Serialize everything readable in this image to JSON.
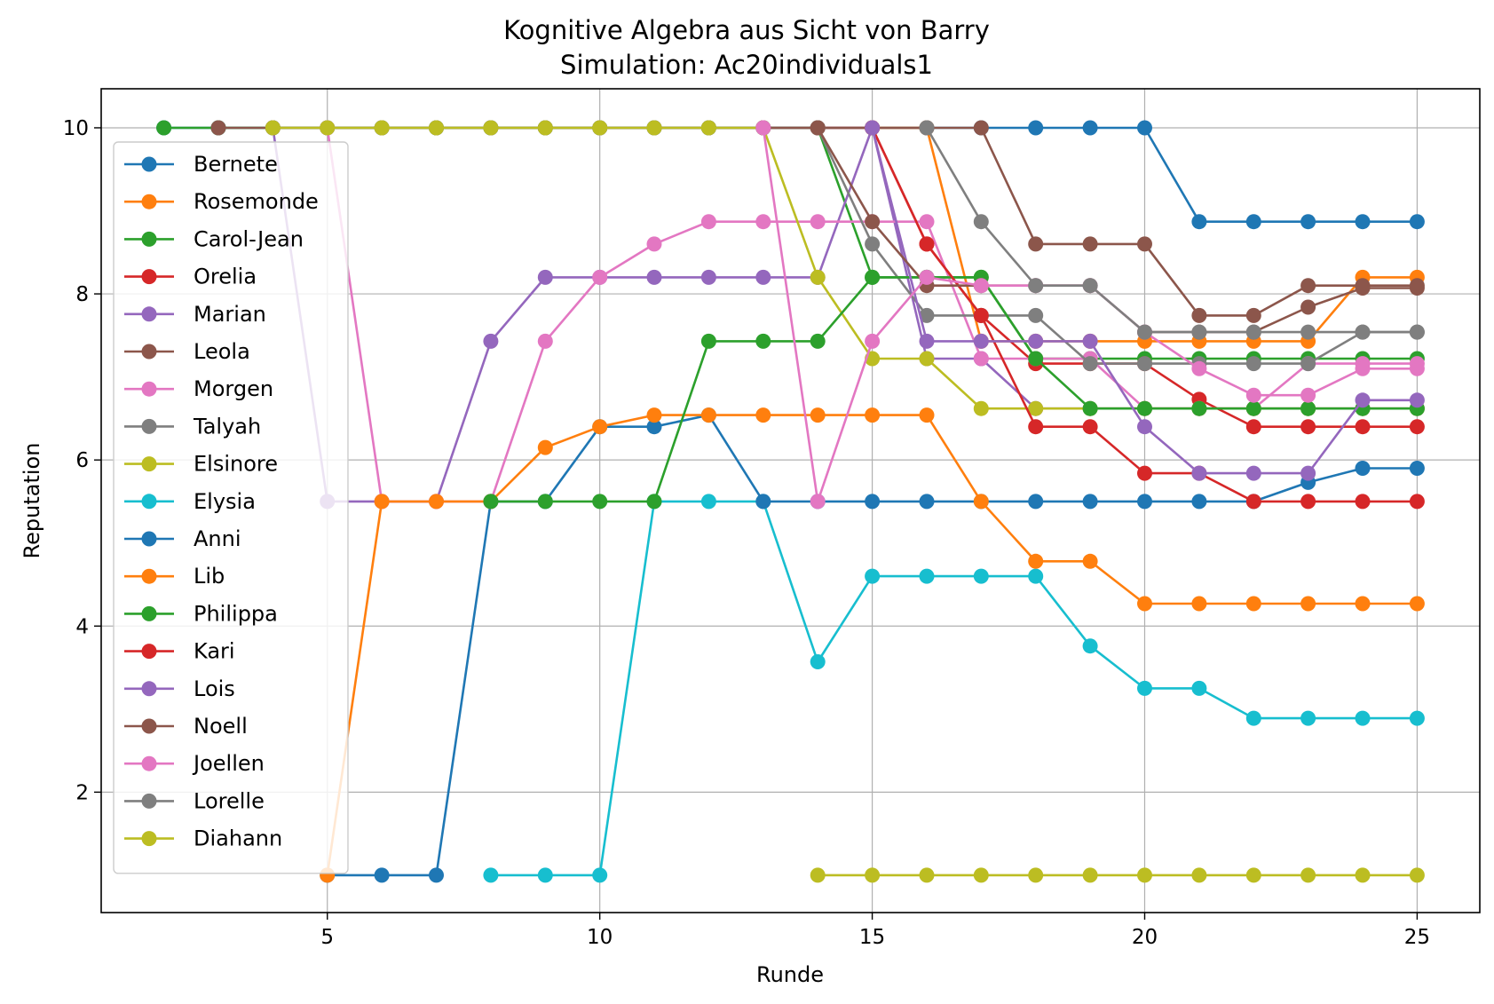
{
  "chart_data": {
    "type": "line",
    "title": "Kognitive Algebra aus Sicht von Barry",
    "subtitle": "Simulation: Ac20individuals1",
    "xlabel": "Runde",
    "ylabel": "Reputation",
    "xlim": [
      0.85,
      26.15
    ],
    "ylim": [
      0.55,
      10.47
    ],
    "xticks": [
      5,
      10,
      15,
      20,
      25
    ],
    "yticks": [
      2,
      4,
      6,
      8,
      10
    ],
    "grid": true,
    "legend_position": "upper-left",
    "series": [
      {
        "name": "Bernete",
        "color": "#1f77b4",
        "x": [
          2,
          3,
          4,
          5,
          6,
          7,
          8,
          9,
          10,
          11,
          12,
          13,
          14,
          15,
          16,
          17,
          18,
          19,
          20,
          21,
          22,
          23,
          24,
          25
        ],
        "y": [
          10,
          10,
          10,
          10,
          10,
          10,
          10,
          10,
          10,
          10,
          10,
          10,
          10,
          10,
          10,
          10,
          10,
          10,
          10,
          8.87,
          8.87,
          8.87,
          8.87,
          8.87
        ]
      },
      {
        "name": "Rosemonde",
        "color": "#ff7f0e",
        "x": [
          15,
          16,
          17,
          18,
          19,
          20,
          21,
          22,
          23,
          24,
          25
        ],
        "y": [
          10,
          10,
          7.43,
          7.43,
          7.43,
          7.43,
          7.43,
          7.43,
          7.43,
          8.2,
          8.2
        ]
      },
      {
        "name": "Carol-Jean",
        "color": "#2ca02c",
        "x": [
          2,
          3,
          4,
          5,
          6,
          7,
          8,
          9,
          10,
          11,
          12,
          13,
          14,
          15,
          16,
          17,
          18,
          19,
          20,
          21,
          22,
          23,
          24,
          25
        ],
        "y": [
          10,
          10,
          10,
          10,
          10,
          10,
          10,
          10,
          10,
          10,
          10,
          10,
          10,
          8.2,
          8.2,
          8.2,
          7.22,
          7.22,
          7.22,
          7.22,
          7.22,
          7.22,
          7.22,
          7.22
        ]
      },
      {
        "name": "Orelia",
        "color": "#d62728",
        "x": [
          14,
          15,
          16,
          17,
          18,
          19,
          20,
          21,
          22,
          23,
          24,
          25
        ],
        "y": [
          10,
          10,
          8.6,
          7.74,
          7.16,
          7.16,
          7.16,
          6.73,
          6.4,
          6.4,
          6.4,
          6.4
        ]
      },
      {
        "name": "Marian",
        "color": "#9467bd",
        "x": [
          4,
          5,
          6,
          7,
          8,
          9,
          10,
          11,
          12,
          13,
          14,
          15,
          16,
          17,
          18,
          19,
          20,
          21,
          22,
          23,
          24,
          25
        ],
        "y": [
          10,
          5.5,
          5.5,
          5.5,
          7.43,
          8.2,
          8.2,
          8.2,
          8.2,
          8.2,
          8.2,
          10,
          7.22,
          7.22,
          6.62,
          6.62,
          6.62,
          6.62,
          6.62,
          6.62,
          6.62,
          6.62
        ]
      },
      {
        "name": "Leola",
        "color": "#8c564b",
        "x": [
          3,
          4,
          5,
          6,
          7,
          8,
          9,
          10,
          11,
          12,
          13,
          14,
          15,
          16,
          17,
          18,
          19,
          20,
          21,
          22,
          23,
          24,
          25
        ],
        "y": [
          10,
          10,
          10,
          10,
          10,
          10,
          10,
          10,
          10,
          10,
          10,
          10,
          10,
          10,
          10,
          8.6,
          8.6,
          8.6,
          7.74,
          7.74,
          8.1,
          8.1,
          8.1
        ]
      },
      {
        "name": "Morgen",
        "color": "#e377c2",
        "x": [
          5,
          6,
          7,
          8,
          9,
          10,
          11,
          12,
          13,
          14,
          15,
          16,
          17,
          18,
          19,
          20,
          21,
          22,
          23,
          24,
          25
        ],
        "y": [
          10,
          5.5,
          5.5,
          5.5,
          7.43,
          8.2,
          8.6,
          8.87,
          8.87,
          8.87,
          8.87,
          8.87,
          7.22,
          7.22,
          7.22,
          6.62,
          6.62,
          6.62,
          7.16,
          7.16,
          7.16
        ]
      },
      {
        "name": "Talyah",
        "color": "#7f7f7f",
        "x": [
          10,
          11,
          12,
          13,
          14,
          15,
          16,
          17,
          18,
          19,
          20,
          21,
          22,
          23,
          24,
          25
        ],
        "y": [
          10,
          10,
          10,
          10,
          10,
          8.6,
          7.74,
          7.74,
          7.74,
          7.16,
          7.16,
          7.16,
          7.16,
          7.16,
          7.54,
          7.54
        ]
      },
      {
        "name": "Elsinore",
        "color": "#bcbd22",
        "x": [
          4,
          5,
          6,
          7,
          8,
          9,
          10,
          11,
          12,
          13,
          14,
          15,
          16,
          17,
          18,
          19,
          20,
          21,
          22,
          23,
          24,
          25
        ],
        "y": [
          10,
          10,
          10,
          10,
          10,
          10,
          10,
          10,
          10,
          10,
          8.2,
          7.22,
          7.22,
          6.62,
          6.62,
          6.62,
          6.62,
          6.62,
          6.62,
          6.62,
          6.62,
          6.62
        ]
      },
      {
        "name": "Elysia",
        "color": "#17becf",
        "x": [
          8,
          9,
          10,
          11,
          12,
          13,
          14,
          15,
          16,
          17,
          18,
          19,
          20,
          21,
          22,
          23,
          24,
          25
        ],
        "y": [
          1,
          1,
          1,
          5.5,
          5.5,
          5.5,
          3.57,
          4.6,
          4.6,
          4.6,
          4.6,
          3.76,
          3.25,
          3.25,
          2.89,
          2.89,
          2.89,
          2.89
        ]
      },
      {
        "name": "Anni",
        "color": "#1f77b4",
        "x": [
          5,
          6,
          7,
          8,
          9,
          10,
          11,
          12,
          13,
          14,
          15,
          16,
          17,
          18,
          19,
          20,
          21,
          22,
          23,
          24,
          25
        ],
        "y": [
          1,
          1,
          1,
          5.5,
          5.5,
          6.4,
          6.4,
          6.54,
          5.5,
          5.5,
          5.5,
          5.5,
          5.5,
          5.5,
          5.5,
          5.5,
          5.5,
          5.5,
          5.73,
          5.9,
          5.9
        ]
      },
      {
        "name": "Lib",
        "color": "#ff7f0e",
        "x": [
          5,
          6,
          7,
          8,
          9,
          10,
          11,
          12,
          13,
          14,
          15,
          16,
          17,
          18,
          19,
          20,
          21,
          22,
          23,
          24,
          25
        ],
        "y": [
          1,
          5.5,
          5.5,
          5.5,
          6.15,
          6.4,
          6.54,
          6.54,
          6.54,
          6.54,
          6.54,
          6.54,
          5.5,
          4.78,
          4.78,
          4.27,
          4.27,
          4.27,
          4.27,
          4.27,
          4.27
        ]
      },
      {
        "name": "Philippa",
        "color": "#2ca02c",
        "x": [
          8,
          9,
          10,
          11,
          12,
          13,
          14,
          15,
          16,
          17,
          18,
          19,
          20,
          21,
          22,
          23,
          24,
          25
        ],
        "y": [
          5.5,
          5.5,
          5.5,
          5.5,
          7.43,
          7.43,
          7.43,
          8.2,
          8.2,
          8.2,
          7.22,
          6.62,
          6.62,
          6.62,
          6.62,
          6.62,
          6.62,
          6.62
        ]
      },
      {
        "name": "Kari",
        "color": "#d62728",
        "x": [
          15,
          16,
          17,
          18,
          19,
          20,
          21,
          22,
          23,
          24,
          25
        ],
        "y": [
          10,
          8.6,
          7.74,
          6.4,
          6.4,
          5.84,
          5.84,
          5.5,
          5.5,
          5.5,
          5.5
        ]
      },
      {
        "name": "Lois",
        "color": "#9467bd",
        "x": [
          15,
          16,
          17,
          18,
          19,
          20,
          21,
          22,
          23,
          24,
          25
        ],
        "y": [
          10,
          7.43,
          7.43,
          7.43,
          7.43,
          6.4,
          5.84,
          5.84,
          5.84,
          6.72,
          6.72
        ]
      },
      {
        "name": "Noell",
        "color": "#8c564b",
        "x": [
          13,
          14,
          15,
          16,
          17,
          18,
          19,
          20,
          21,
          22,
          23,
          24,
          25
        ],
        "y": [
          10,
          10,
          8.87,
          8.1,
          8.1,
          8.1,
          8.1,
          7.54,
          7.54,
          7.54,
          7.84,
          8.07,
          8.07
        ]
      },
      {
        "name": "Joellen",
        "color": "#e377c2",
        "x": [
          13,
          14,
          15,
          16,
          17,
          18,
          19,
          20,
          21,
          22,
          23,
          24,
          25
        ],
        "y": [
          10,
          5.5,
          7.43,
          8.2,
          8.1,
          8.1,
          8.1,
          7.54,
          7.1,
          6.78,
          6.78,
          7.1,
          7.1
        ]
      },
      {
        "name": "Lorelle",
        "color": "#7f7f7f",
        "x": [
          16,
          17,
          18,
          19,
          20,
          21,
          22,
          23,
          24,
          25
        ],
        "y": [
          10,
          8.87,
          8.1,
          8.1,
          7.54,
          7.54,
          7.54,
          7.54,
          7.54,
          7.54
        ]
      },
      {
        "name": "Diahann",
        "color": "#bcbd22",
        "x": [
          14,
          15,
          16,
          17,
          18,
          19,
          20,
          21,
          22,
          23,
          24,
          25
        ],
        "y": [
          1,
          1,
          1,
          1,
          1,
          1,
          1,
          1,
          1,
          1,
          1,
          1
        ]
      }
    ]
  }
}
